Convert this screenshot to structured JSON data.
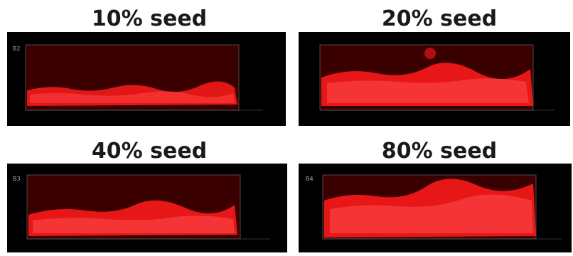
{
  "panels": [
    {
      "label": "10% seed",
      "fill_level": 0.3,
      "scale": "B2"
    },
    {
      "label": "20% seed",
      "fill_level": 0.45,
      "scale": ""
    },
    {
      "label": "40% seed",
      "fill_level": 0.4,
      "scale": "B3"
    },
    {
      "label": "80% seed",
      "fill_level": 0.7,
      "scale": "B4"
    }
  ],
  "colors": {
    "background": "#ffffff",
    "panel_background": "#000000",
    "chamber_glow": "#3a0000",
    "fluorescence": "#ff1a1a",
    "label_text": "#1a1a1a"
  }
}
